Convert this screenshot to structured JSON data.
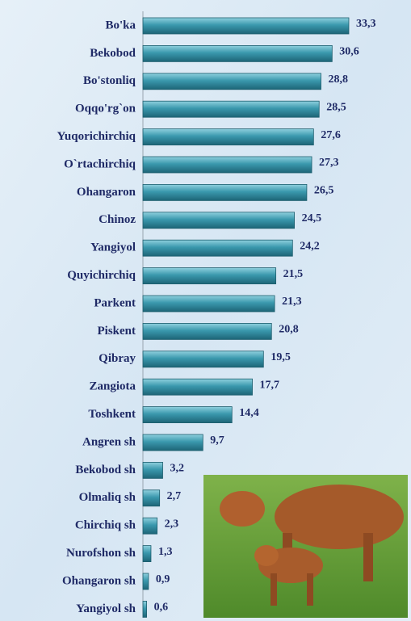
{
  "chart_data": {
    "type": "bar",
    "orientation": "horizontal",
    "categories": [
      "Bo'ka",
      "Bekobod",
      "Bo'stonliq",
      "Oqqo'rg`on",
      "Yuqorichirchiq",
      "O`rtachirchiq",
      "Ohangaron",
      "Chinoz",
      "Yangiyol",
      "Quyichirchiq",
      "Parkent",
      "Piskent",
      "Qibray",
      "Zangiota",
      "Toshkent",
      "Angren sh",
      "Bekobod sh",
      "Olmaliq sh",
      "Chirchiq sh",
      "Nurofshon sh",
      "Ohangaron sh",
      "Yangiyol sh"
    ],
    "values": [
      33.3,
      30.6,
      28.8,
      28.5,
      27.6,
      27.3,
      26.5,
      24.5,
      24.2,
      21.5,
      21.3,
      20.8,
      19.5,
      17.7,
      14.4,
      9.7,
      3.2,
      2.7,
      2.3,
      1.3,
      0.9,
      0.6
    ],
    "value_labels": [
      "33,3",
      "30,6",
      "28,8",
      "28,5",
      "27,6",
      "27,3",
      "26,5",
      "24,5",
      "24,2",
      "21,5",
      "21,3",
      "20,8",
      "19,5",
      "17,7",
      "14,4",
      "9,7",
      "3,2",
      "2,7",
      "2,3",
      "1,3",
      "0,9",
      "0,6"
    ],
    "color": "#3a98ad",
    "xlim": [
      0,
      35
    ]
  }
}
